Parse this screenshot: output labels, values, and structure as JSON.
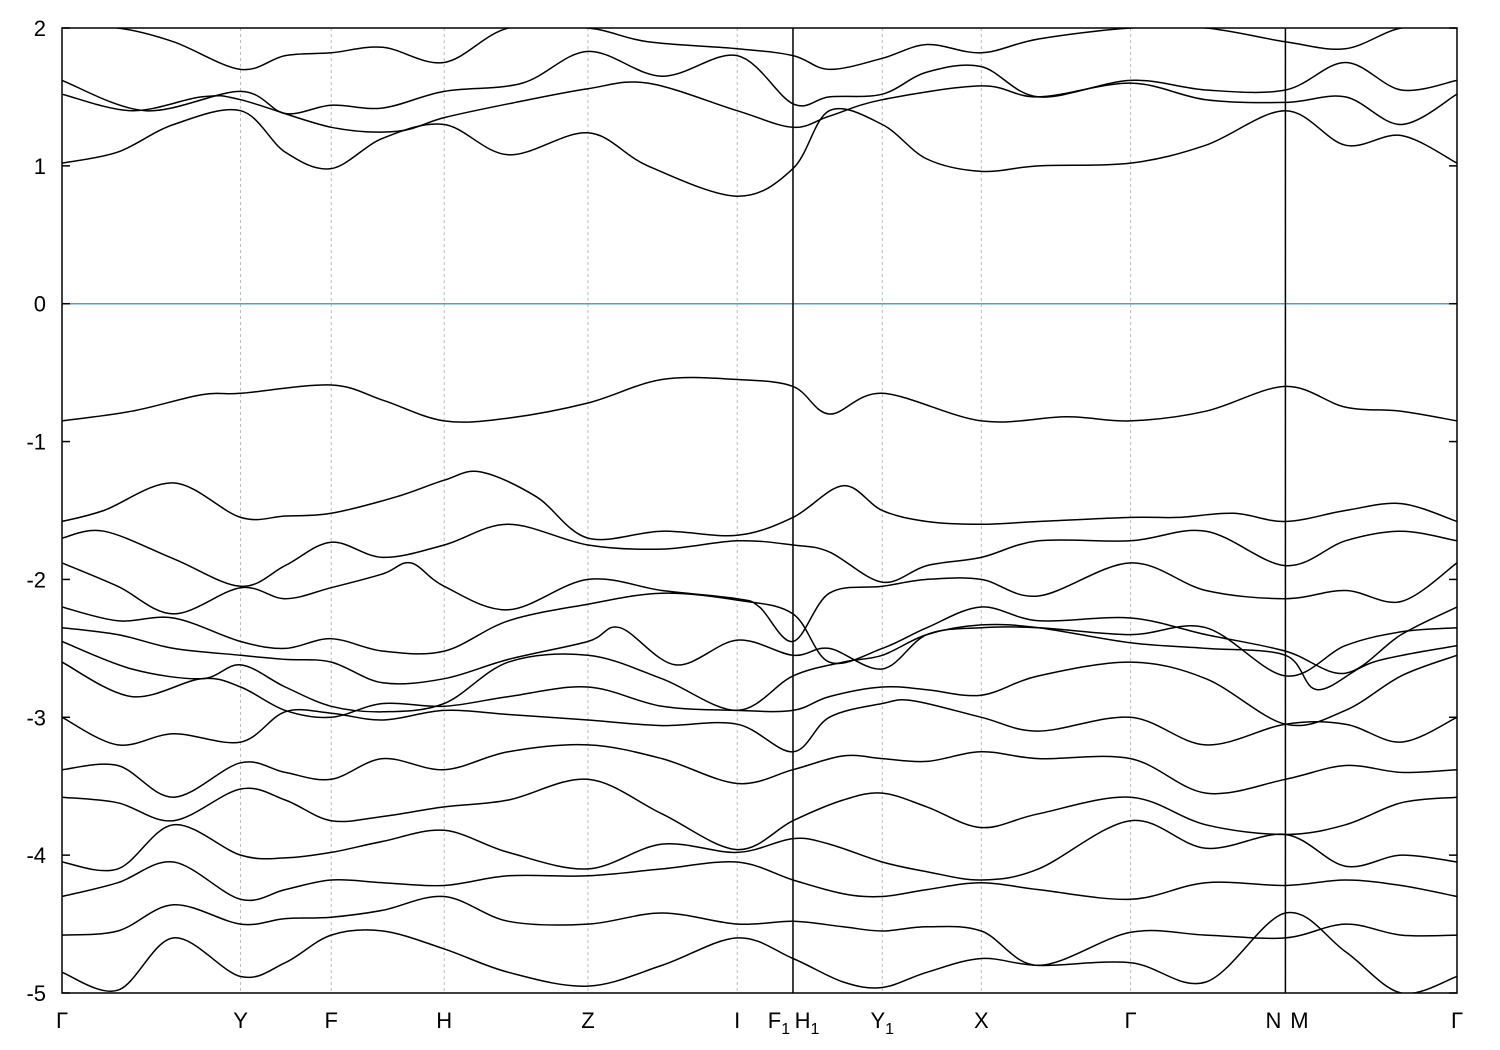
{
  "chart_data": {
    "type": "line",
    "title": "",
    "xlabel": "",
    "ylabel": "",
    "ylim": [
      -5,
      2
    ],
    "yticks": [
      2,
      1,
      0,
      -1,
      -2,
      -3,
      -4,
      -5
    ],
    "ytick_labels": [
      "2",
      "1",
      "0",
      "-1",
      "-2",
      "-3",
      "-4",
      "-5"
    ],
    "fermi_level": {
      "y": 0,
      "color": "#4aa3c8"
    },
    "xlim": [
      0,
      10.0
    ],
    "kpoints": [
      {
        "name": "Γ",
        "sub": "",
        "x": 0.0
      },
      {
        "name": "Y",
        "sub": "",
        "x": 1.28
      },
      {
        "name": "F",
        "sub": "",
        "x": 1.93
      },
      {
        "name": "H",
        "sub": "",
        "x": 2.74
      },
      {
        "name": "Z",
        "sub": "",
        "x": 3.77
      },
      {
        "name": "I",
        "sub": "",
        "x": 4.84
      },
      {
        "name": "F",
        "sub": "1",
        "x": 5.24
      },
      {
        "name": "H",
        "sub": "1",
        "x": 5.24
      },
      {
        "name": "Y",
        "sub": "1",
        "x": 5.88
      },
      {
        "name": "X",
        "sub": "",
        "x": 6.59
      },
      {
        "name": "Γ",
        "sub": "",
        "x": 7.66
      },
      {
        "name": "N",
        "sub": "",
        "x": 8.77
      },
      {
        "name": "M",
        "sub": "",
        "x": 8.77
      },
      {
        "name": "Γ",
        "sub": "",
        "x": 10.0
      }
    ],
    "grid": true,
    "legend": "none",
    "series": [
      {
        "x": [
          0.0,
          0.4,
          0.8,
          1.28,
          1.6,
          1.93,
          2.3,
          2.74,
          3.2,
          3.77,
          4.2,
          4.84,
          5.24,
          5.5,
          5.88,
          6.2,
          6.59,
          7.0,
          7.66,
          8.2,
          8.77,
          9.2,
          9.6,
          10.0
        ],
        "y": [
          1.02,
          1.1,
          1.3,
          1.4,
          1.1,
          0.98,
          1.2,
          1.3,
          1.08,
          1.24,
          1.0,
          0.78,
          0.98,
          1.4,
          1.3,
          1.05,
          0.96,
          1.0,
          1.02,
          1.15,
          1.4,
          1.15,
          1.22,
          1.02
        ]
      },
      {
        "x": [
          0.0,
          0.5,
          1.0,
          1.28,
          1.93,
          2.4,
          2.74,
          3.2,
          3.77,
          4.2,
          4.84,
          5.24,
          5.5,
          5.88,
          6.59,
          7.0,
          7.66,
          8.2,
          8.77,
          9.2,
          9.6,
          10.0
        ],
        "y": [
          1.52,
          1.4,
          1.5,
          1.48,
          1.28,
          1.25,
          1.35,
          1.45,
          1.56,
          1.6,
          1.4,
          1.28,
          1.36,
          1.48,
          1.58,
          1.5,
          1.6,
          1.48,
          1.46,
          1.5,
          1.3,
          1.52
        ]
      },
      {
        "x": [
          0.0,
          0.6,
          1.28,
          1.6,
          1.93,
          2.3,
          2.74,
          3.3,
          3.77,
          4.3,
          4.84,
          5.24,
          5.5,
          5.88,
          6.2,
          6.59,
          7.0,
          7.66,
          8.2,
          8.77,
          9.2,
          9.6,
          10.0
        ],
        "y": [
          1.62,
          1.4,
          1.54,
          1.38,
          1.44,
          1.42,
          1.54,
          1.6,
          1.83,
          1.65,
          1.8,
          1.45,
          1.5,
          1.52,
          1.68,
          1.72,
          1.5,
          1.62,
          1.55,
          1.55,
          1.75,
          1.55,
          1.62
        ]
      },
      {
        "x": [
          0.0,
          0.4,
          0.8,
          1.28,
          1.6,
          1.93,
          2.3,
          2.74,
          3.2,
          3.77,
          4.2,
          4.84,
          5.24,
          5.5,
          5.88,
          6.2,
          6.59,
          7.0,
          7.66,
          8.2,
          8.77,
          9.2,
          9.6,
          10.0
        ],
        "y": [
          2.0,
          2.0,
          1.9,
          1.7,
          1.8,
          1.82,
          1.86,
          1.75,
          2.0,
          2.0,
          1.9,
          1.85,
          1.8,
          1.7,
          1.78,
          1.88,
          1.82,
          1.92,
          2.0,
          2.0,
          1.9,
          1.85,
          2.0,
          2.0
        ]
      },
      {
        "x": [
          0.0,
          0.5,
          1.0,
          1.28,
          1.93,
          2.3,
          2.74,
          3.2,
          3.77,
          4.3,
          4.84,
          5.24,
          5.5,
          5.88,
          6.59,
          7.2,
          7.66,
          8.2,
          8.77,
          9.2,
          9.6,
          10.0
        ],
        "y": [
          -0.85,
          -0.78,
          -0.66,
          -0.65,
          -0.59,
          -0.7,
          -0.85,
          -0.83,
          -0.72,
          -0.55,
          -0.55,
          -0.6,
          -0.8,
          -0.65,
          -0.85,
          -0.82,
          -0.85,
          -0.78,
          -0.6,
          -0.75,
          -0.78,
          -0.85
        ]
      },
      {
        "x": [
          0.0,
          0.3,
          0.8,
          1.28,
          1.6,
          1.93,
          2.4,
          2.74,
          3.0,
          3.4,
          3.77,
          4.3,
          4.84,
          5.24,
          5.6,
          5.88,
          6.2,
          6.59,
          7.0,
          7.66,
          8.0,
          8.4,
          8.77,
          9.2,
          9.6,
          10.0
        ],
        "y": [
          -1.58,
          -1.5,
          -1.3,
          -1.55,
          -1.54,
          -1.52,
          -1.4,
          -1.28,
          -1.22,
          -1.4,
          -1.7,
          -1.65,
          -1.68,
          -1.55,
          -1.32,
          -1.5,
          -1.58,
          -1.6,
          -1.58,
          -1.55,
          -1.55,
          -1.52,
          -1.58,
          -1.5,
          -1.45,
          -1.58
        ]
      },
      {
        "x": [
          0.0,
          0.3,
          0.8,
          1.28,
          1.6,
          1.93,
          2.3,
          2.74,
          3.2,
          3.77,
          4.3,
          4.84,
          5.24,
          5.5,
          5.88,
          6.2,
          6.59,
          7.0,
          7.66,
          8.2,
          8.77,
          9.2,
          9.6,
          10.0
        ],
        "y": [
          -1.7,
          -1.65,
          -1.85,
          -2.05,
          -1.9,
          -1.73,
          -1.84,
          -1.75,
          -1.6,
          -1.75,
          -1.78,
          -1.72,
          -1.75,
          -1.8,
          -2.02,
          -1.9,
          -1.84,
          -1.72,
          -1.72,
          -1.65,
          -1.9,
          -1.72,
          -1.65,
          -1.72
        ]
      },
      {
        "x": [
          0.0,
          0.4,
          0.8,
          1.28,
          1.6,
          1.93,
          2.3,
          2.5,
          2.74,
          3.2,
          3.77,
          4.3,
          4.84,
          5.0,
          5.24,
          5.5,
          5.88,
          6.2,
          6.59,
          7.0,
          7.66,
          8.2,
          8.77,
          9.2,
          9.6,
          10.0
        ],
        "y": [
          -1.88,
          -2.05,
          -2.25,
          -2.06,
          -2.14,
          -2.06,
          -1.96,
          -1.88,
          -2.05,
          -2.22,
          -2.0,
          -2.08,
          -2.14,
          -2.2,
          -2.45,
          -2.1,
          -2.05,
          -2.0,
          -2.0,
          -2.12,
          -1.88,
          -2.08,
          -2.14,
          -2.08,
          -2.16,
          -1.88
        ]
      },
      {
        "x": [
          0.0,
          0.4,
          0.8,
          1.28,
          1.6,
          1.93,
          2.3,
          2.74,
          3.2,
          3.77,
          4.3,
          4.84,
          5.24,
          5.5,
          5.88,
          6.2,
          6.59,
          7.0,
          7.66,
          8.2,
          8.77,
          9.2,
          9.6,
          10.0
        ],
        "y": [
          -2.2,
          -2.3,
          -2.28,
          -2.45,
          -2.5,
          -2.43,
          -2.52,
          -2.52,
          -2.3,
          -2.18,
          -2.1,
          -2.15,
          -2.25,
          -2.6,
          -2.5,
          -2.35,
          -2.2,
          -2.3,
          -2.28,
          -2.4,
          -2.52,
          -2.68,
          -2.4,
          -2.2
        ]
      },
      {
        "x": [
          0.0,
          0.4,
          0.8,
          1.28,
          1.6,
          1.93,
          2.3,
          2.74,
          3.2,
          3.77,
          4.0,
          4.4,
          4.84,
          5.24,
          5.5,
          5.88,
          6.2,
          6.59,
          7.0,
          7.66,
          8.2,
          8.77,
          9.2,
          9.6,
          10.0
        ],
        "y": [
          -2.35,
          -2.4,
          -2.5,
          -2.55,
          -2.58,
          -2.6,
          -2.75,
          -2.72,
          -2.58,
          -2.45,
          -2.35,
          -2.62,
          -2.44,
          -2.55,
          -2.5,
          -2.65,
          -2.4,
          -2.35,
          -2.35,
          -2.4,
          -2.35,
          -2.7,
          -2.48,
          -2.38,
          -2.35
        ]
      },
      {
        "x": [
          0.0,
          0.5,
          1.0,
          1.28,
          1.6,
          1.93,
          2.3,
          2.74,
          3.2,
          3.77,
          4.3,
          4.84,
          5.24,
          5.6,
          5.88,
          6.2,
          6.59,
          7.0,
          7.66,
          8.2,
          8.77,
          9.0,
          9.4,
          10.0
        ],
        "y": [
          -2.45,
          -2.65,
          -2.72,
          -2.62,
          -2.78,
          -2.92,
          -2.96,
          -2.9,
          -2.6,
          -2.55,
          -2.72,
          -2.95,
          -2.7,
          -2.6,
          -2.55,
          -2.4,
          -2.33,
          -2.35,
          -2.46,
          -2.5,
          -2.55,
          -2.8,
          -2.6,
          -2.48
        ]
      },
      {
        "x": [
          0.0,
          0.5,
          1.0,
          1.28,
          1.6,
          1.93,
          2.3,
          2.74,
          3.2,
          3.77,
          4.3,
          4.84,
          5.24,
          5.5,
          5.88,
          6.2,
          6.59,
          7.0,
          7.66,
          8.2,
          8.77,
          9.2,
          9.6,
          10.0
        ],
        "y": [
          -2.6,
          -2.85,
          -2.72,
          -2.78,
          -2.95,
          -3.0,
          -2.9,
          -2.92,
          -2.85,
          -2.78,
          -2.92,
          -2.95,
          -2.95,
          -2.85,
          -2.78,
          -2.8,
          -2.84,
          -2.7,
          -2.6,
          -2.72,
          -3.05,
          -2.95,
          -2.7,
          -2.55
        ]
      },
      {
        "x": [
          0.0,
          0.4,
          0.8,
          1.28,
          1.6,
          1.93,
          2.3,
          2.74,
          3.2,
          3.77,
          4.3,
          4.84,
          5.24,
          5.5,
          5.88,
          6.1,
          6.59,
          7.0,
          7.66,
          8.2,
          8.77,
          9.2,
          9.6,
          10.0
        ],
        "y": [
          -3.0,
          -3.2,
          -3.12,
          -3.18,
          -2.96,
          -2.97,
          -3.02,
          -2.95,
          -2.98,
          -3.02,
          -3.06,
          -3.05,
          -3.25,
          -3.0,
          -2.9,
          -2.88,
          -3.0,
          -3.1,
          -3.0,
          -3.2,
          -3.05,
          -3.05,
          -3.18,
          -3.0
        ]
      },
      {
        "x": [
          0.0,
          0.4,
          0.8,
          1.28,
          1.6,
          1.93,
          2.3,
          2.74,
          3.2,
          3.77,
          4.3,
          4.84,
          5.24,
          5.6,
          5.88,
          6.2,
          6.59,
          7.0,
          7.66,
          8.2,
          8.77,
          9.2,
          9.6,
          10.0
        ],
        "y": [
          -3.38,
          -3.35,
          -3.58,
          -3.33,
          -3.4,
          -3.45,
          -3.3,
          -3.38,
          -3.25,
          -3.2,
          -3.3,
          -3.48,
          -3.38,
          -3.28,
          -3.3,
          -3.32,
          -3.25,
          -3.3,
          -3.3,
          -3.55,
          -3.45,
          -3.35,
          -3.4,
          -3.38
        ]
      },
      {
        "x": [
          0.0,
          0.4,
          0.8,
          1.28,
          1.6,
          1.93,
          2.3,
          2.74,
          3.2,
          3.77,
          4.3,
          4.84,
          5.24,
          5.6,
          5.88,
          6.2,
          6.59,
          7.0,
          7.66,
          8.2,
          8.77,
          9.2,
          9.6,
          10.0
        ],
        "y": [
          -3.58,
          -3.62,
          -3.75,
          -3.52,
          -3.6,
          -3.75,
          -3.72,
          -3.65,
          -3.6,
          -3.45,
          -3.7,
          -3.96,
          -3.75,
          -3.6,
          -3.55,
          -3.65,
          -3.8,
          -3.7,
          -3.58,
          -3.78,
          -3.85,
          -3.78,
          -3.62,
          -3.58
        ]
      },
      {
        "x": [
          0.0,
          0.4,
          0.8,
          1.28,
          1.6,
          1.93,
          2.3,
          2.74,
          3.2,
          3.77,
          4.3,
          4.84,
          5.24,
          5.5,
          5.88,
          6.2,
          6.59,
          7.0,
          7.66,
          8.2,
          8.77,
          9.2,
          9.6,
          10.0
        ],
        "y": [
          -4.05,
          -4.1,
          -3.78,
          -4.0,
          -4.02,
          -3.98,
          -3.9,
          -3.82,
          -3.98,
          -4.1,
          -3.92,
          -3.98,
          -3.88,
          -3.92,
          -4.05,
          -4.12,
          -4.18,
          -4.1,
          -3.75,
          -3.95,
          -3.85,
          -4.08,
          -4.0,
          -4.05
        ]
      },
      {
        "x": [
          0.0,
          0.4,
          0.8,
          1.28,
          1.6,
          1.93,
          2.3,
          2.74,
          3.2,
          3.77,
          4.3,
          4.84,
          5.24,
          5.6,
          5.88,
          6.2,
          6.59,
          7.0,
          7.66,
          8.2,
          8.77,
          9.2,
          9.6,
          10.0
        ],
        "y": [
          -4.3,
          -4.2,
          -4.05,
          -4.32,
          -4.25,
          -4.18,
          -4.2,
          -4.22,
          -4.15,
          -4.15,
          -4.1,
          -4.05,
          -4.18,
          -4.28,
          -4.3,
          -4.25,
          -4.2,
          -4.25,
          -4.32,
          -4.2,
          -4.22,
          -4.18,
          -4.22,
          -4.3
        ]
      },
      {
        "x": [
          0.0,
          0.4,
          0.8,
          1.28,
          1.6,
          1.93,
          2.3,
          2.74,
          3.2,
          3.77,
          4.3,
          4.84,
          5.24,
          5.6,
          5.88,
          6.2,
          6.59,
          7.0,
          7.66,
          8.2,
          8.77,
          9.2,
          9.6,
          10.0
        ],
        "y": [
          -4.58,
          -4.55,
          -4.36,
          -4.5,
          -4.46,
          -4.45,
          -4.4,
          -4.3,
          -4.48,
          -4.5,
          -4.42,
          -4.5,
          -4.48,
          -4.52,
          -4.55,
          -4.52,
          -4.55,
          -4.8,
          -4.56,
          -4.58,
          -4.6,
          -4.5,
          -4.58,
          -4.58
        ]
      },
      {
        "x": [
          0.0,
          0.4,
          0.8,
          1.28,
          1.6,
          1.93,
          2.3,
          2.74,
          3.2,
          3.77,
          4.3,
          4.84,
          5.24,
          5.6,
          5.88,
          6.2,
          6.59,
          7.0,
          7.66,
          8.2,
          8.77,
          9.2,
          9.6,
          10.0
        ],
        "y": [
          -4.85,
          -4.98,
          -4.6,
          -4.88,
          -4.78,
          -4.58,
          -4.55,
          -4.68,
          -4.85,
          -4.95,
          -4.8,
          -4.6,
          -4.75,
          -4.92,
          -4.96,
          -4.85,
          -4.75,
          -4.8,
          -4.78,
          -4.92,
          -4.42,
          -4.7,
          -5.0,
          -4.88
        ]
      }
    ]
  }
}
